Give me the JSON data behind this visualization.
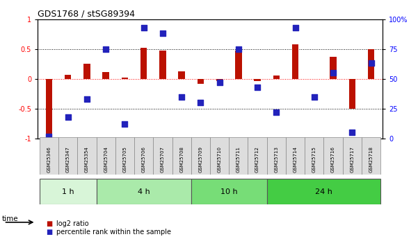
{
  "title": "GDS1768 / stSG89394",
  "samples": [
    "GSM25346",
    "GSM25347",
    "GSM25354",
    "GSM25704",
    "GSM25705",
    "GSM25706",
    "GSM25707",
    "GSM25708",
    "GSM25709",
    "GSM25710",
    "GSM25711",
    "GSM25712",
    "GSM25713",
    "GSM25714",
    "GSM25715",
    "GSM25716",
    "GSM25717",
    "GSM25718"
  ],
  "log2_ratio": [
    -0.93,
    0.07,
    0.25,
    0.12,
    0.02,
    0.52,
    0.47,
    0.13,
    -0.08,
    -0.04,
    0.47,
    -0.04,
    0.06,
    0.58,
    0.0,
    0.37,
    -0.5,
    0.5
  ],
  "percentile": [
    2,
    18,
    33,
    75,
    12,
    93,
    88,
    35,
    30,
    47,
    75,
    43,
    22,
    93,
    35,
    55,
    5,
    63
  ],
  "time_groups": [
    {
      "label": "1 h",
      "start": 0,
      "end": 3,
      "color": "#d8f5d8"
    },
    {
      "label": "4 h",
      "start": 3,
      "end": 8,
      "color": "#aaeaaa"
    },
    {
      "label": "10 h",
      "start": 8,
      "end": 12,
      "color": "#77dd77"
    },
    {
      "label": "24 h",
      "start": 12,
      "end": 18,
      "color": "#44cc44"
    }
  ],
  "bar_color": "#bb1100",
  "dot_color": "#2222bb",
  "ylim_left": [
    -1.0,
    1.0
  ],
  "ylim_right": [
    0,
    100
  ],
  "yticks_left": [
    -1,
    -0.5,
    0,
    0.5,
    1
  ],
  "ytick_labels_left": [
    "-1",
    "-0.5",
    "0",
    "0.5",
    "1"
  ],
  "yticks_right": [
    0,
    25,
    50,
    75,
    100
  ],
  "ytick_labels_right": [
    "0",
    "25",
    "50",
    "75",
    "100%"
  ],
  "legend_log2": "log2 ratio",
  "legend_pct": "percentile rank within the sample",
  "time_label": "time",
  "bar_width": 0.35,
  "dot_size": 28
}
